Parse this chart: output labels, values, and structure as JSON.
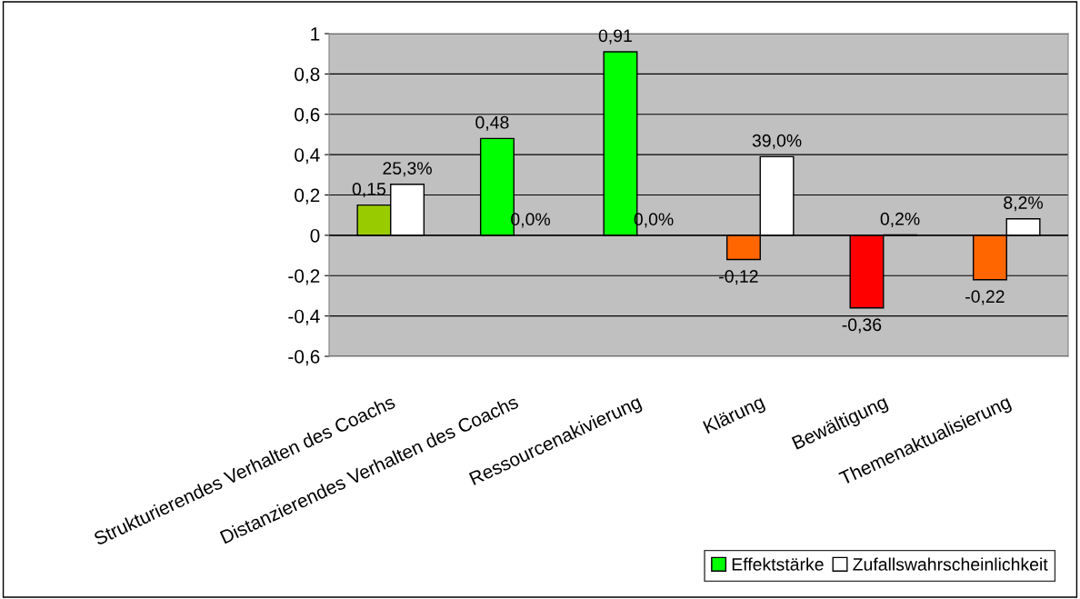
{
  "chart_data": {
    "type": "bar",
    "categories": [
      "Strukturierendes Verhalten des Coachs",
      "Distanzierendes Verhalten des Coachs",
      "Ressourcenakivierung",
      "Klärung",
      "Bewältigung",
      "Themenaktualisierung"
    ],
    "series": [
      {
        "name": "Effektstärke",
        "color": "#00ff00",
        "colors": [
          "#99cc00",
          "#00ff00",
          "#00ff00",
          "#ff6600",
          "#ff0000",
          "#ff6600"
        ],
        "values": [
          0.15,
          0.48,
          0.91,
          -0.12,
          -0.36,
          -0.22
        ],
        "value_labels": [
          "0,15",
          "0,48",
          "0,91",
          "-0,12",
          "-0,36",
          "-0,22"
        ]
      },
      {
        "name": "Zufallswahrscheinlichkeit",
        "color": "#ffffff",
        "values": [
          0.253,
          0.0,
          0.0,
          0.39,
          0.002,
          0.082
        ],
        "value_labels": [
          "25,3%",
          "0,0%",
          "0,0%",
          "39,0%",
          "0,2%",
          "8,2%"
        ]
      }
    ],
    "ylim": [
      -0.6,
      1
    ],
    "yticks": [
      {
        "value": -0.6,
        "label": "-0,6"
      },
      {
        "value": -0.4,
        "label": "-0,4"
      },
      {
        "value": -0.2,
        "label": "-0,2"
      },
      {
        "value": 0,
        "label": "0"
      },
      {
        "value": 0.2,
        "label": "0,2"
      },
      {
        "value": 0.4,
        "label": "0,4"
      },
      {
        "value": 0.6,
        "label": "0,6"
      },
      {
        "value": 0.8,
        "label": "0,8"
      },
      {
        "value": 1,
        "label": "1"
      }
    ],
    "grid": "y",
    "legend": "bottom right"
  }
}
